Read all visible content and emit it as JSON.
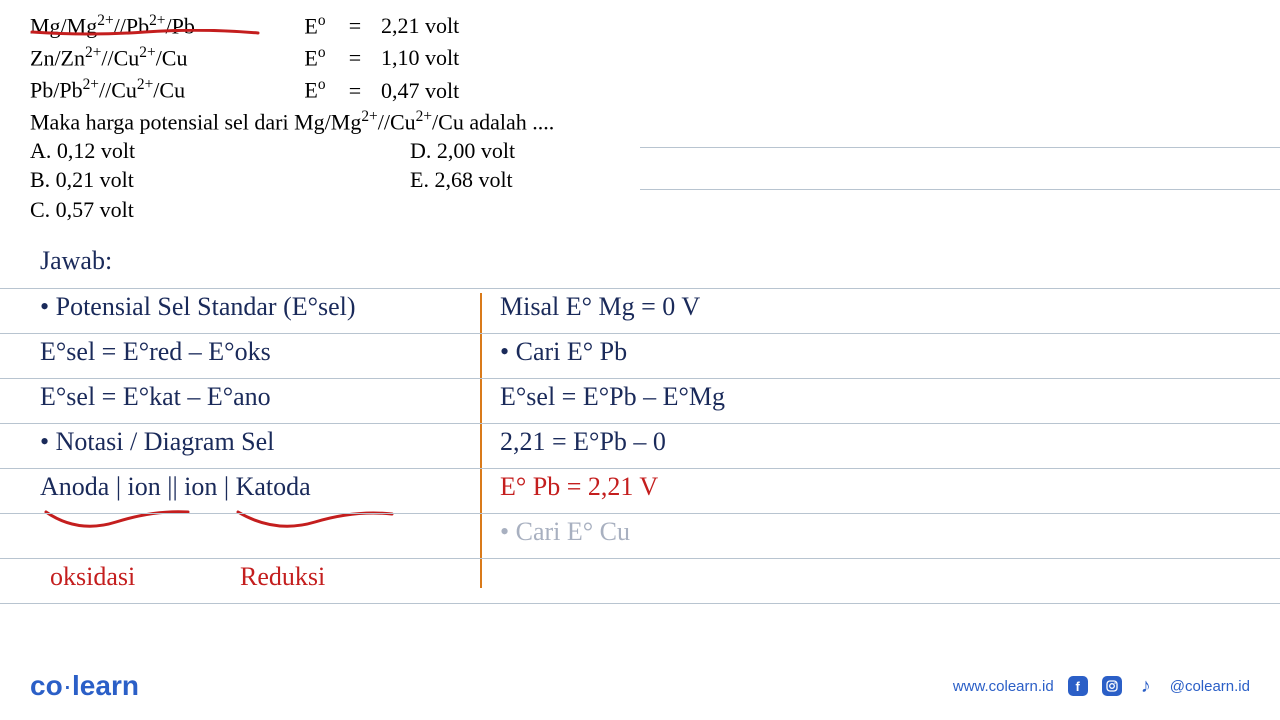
{
  "given": [
    {
      "cell": "Mg/Mg<sup>2+</sup>//Pb<sup>2+</sup>/Pb",
      "symbol": "E<sup>o</sup>",
      "eq": "=",
      "value": "2,21 volt"
    },
    {
      "cell": "Zn/Zn<sup>2+</sup>//Cu<sup>2+</sup>/Cu",
      "symbol": "E<sup>o</sup>",
      "eq": "=",
      "value": "1,10 volt"
    },
    {
      "cell": "Pb/Pb<sup>2+</sup>//Cu<sup>2+</sup>/Cu",
      "symbol": "E<sup>o</sup>",
      "eq": "=",
      "value": "0,47 volt"
    }
  ],
  "question": "Maka harga potensial sel dari Mg/Mg<sup>2+</sup>//Cu<sup>2+</sup>/Cu adalah ....",
  "opts": {
    "a": "A.  0,12 volt",
    "b": "B.  0,21 volt",
    "c": "C.  0,57 volt",
    "d": "D.  2,00 volt",
    "e": "E.  2,68 volt"
  },
  "hand": {
    "jawab": "Jawab:",
    "h1": "• Potensial Sel Standar (E°sel)",
    "h2": "E°sel = E°red – E°oks",
    "h3": "E°sel = E°kat – E°ano",
    "h4": "• Notasi / Diagram Sel",
    "h5": "Anoda | ion || ion | Katoda",
    "oks": "oksidasi",
    "red": "Reduksi",
    "r1": "Misal E° Mg = 0 V",
    "r2": "• Cari E° Pb",
    "r3": "E°sel = E°Pb – E°Mg",
    "r4": "2,21 = E°Pb – 0",
    "r5": "E° Pb = 2,21 V",
    "r6": "• Cari E° Cu"
  },
  "colors": {
    "ink": "#1a2a5a",
    "red": "#c41e1e",
    "orange": "#d97a1a",
    "faded": "#a8b0c0",
    "rule": "#b8c4d0",
    "brand": "#2b5fc7"
  },
  "footer": {
    "logo_left": "co",
    "logo_right": "learn",
    "url": "www.colearn.id",
    "handle": "@colearn.id"
  },
  "ruled_lines_short_y": [
    -103,
    -61
  ],
  "ruled_lines_full_y": [
    38,
    83,
    128,
    173,
    218,
    263,
    308,
    353
  ]
}
